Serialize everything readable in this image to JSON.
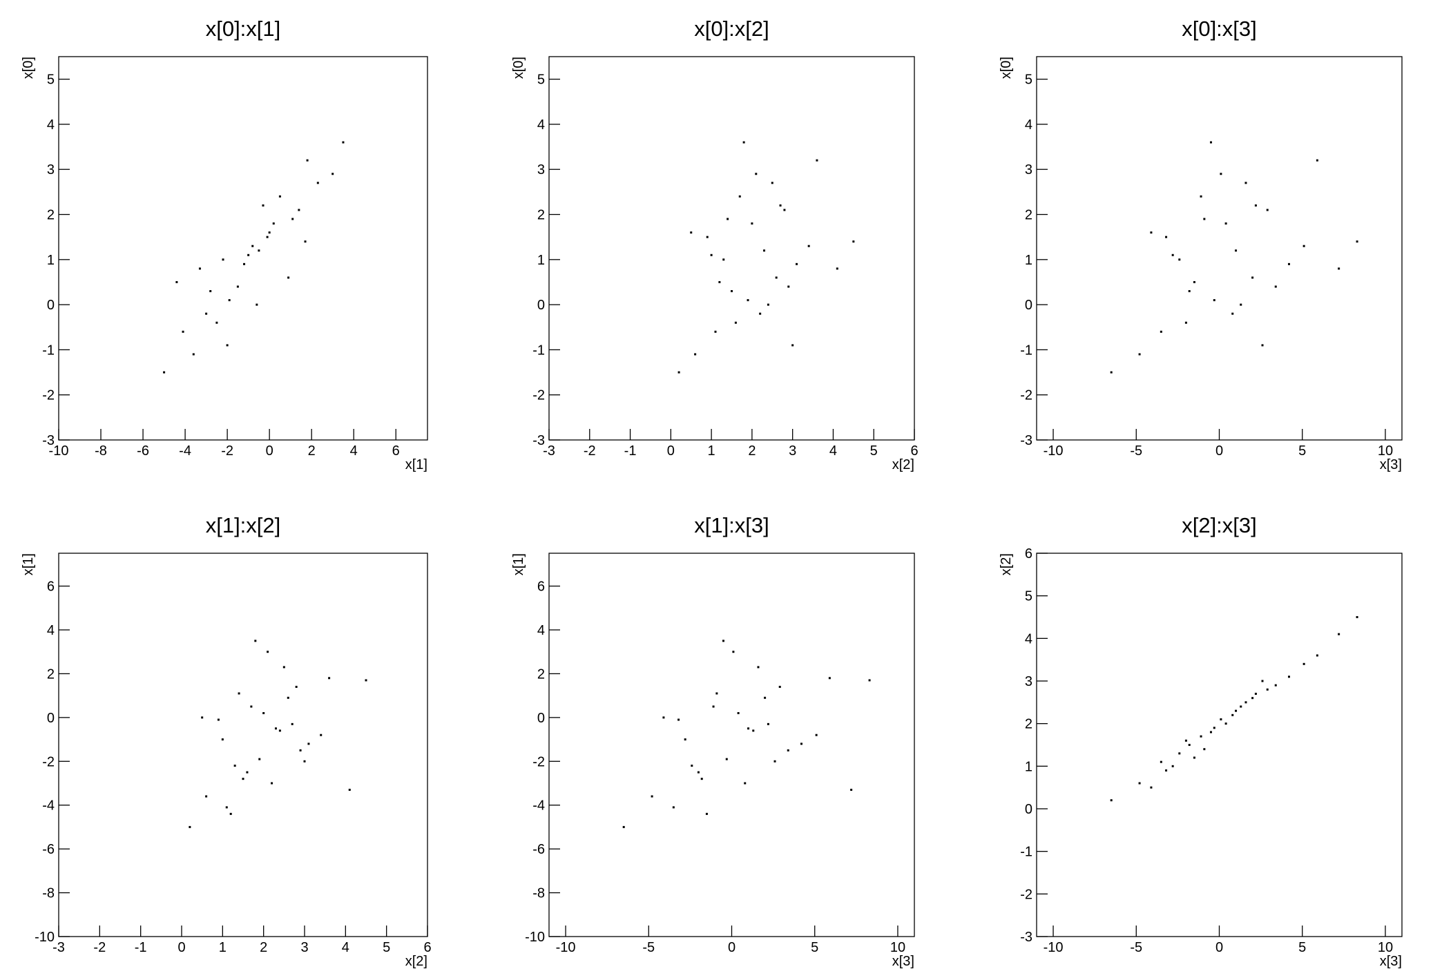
{
  "chart_data": [
    {
      "type": "scatter",
      "title": "x[0]:x[1]",
      "x_label": "x[1]",
      "y_label": "x[0]",
      "color": "#000000",
      "x": [
        -0.5,
        -2.8,
        1.4,
        -4.1,
        0.2,
        -1.2,
        -3.6,
        2.3,
        -1.9,
        -0.1,
        1.8,
        -3.0,
        -2.2,
        0.9,
        0.5,
        -5.0,
        -0.8,
        -1.5,
        1.1,
        -2.5,
        3.0,
        -3.3,
        0.0,
        -0.6,
        3.5,
        -2.0,
        -1.0,
        -0.3,
        -4.4,
        1.7
      ],
      "y": [
        1.2,
        0.3,
        2.1,
        -0.6,
        1.8,
        0.9,
        -1.1,
        2.7,
        0.1,
        1.5,
        3.2,
        -0.2,
        1.0,
        0.6,
        2.4,
        -1.5,
        1.3,
        0.4,
        1.9,
        -0.4,
        2.9,
        0.8,
        1.6,
        0.0,
        3.6,
        -0.9,
        1.1,
        2.2,
        0.5,
        1.4
      ],
      "xlim": [
        -10,
        7.5
      ],
      "ylim": [
        -3,
        5.5
      ],
      "xticks": [
        -10,
        -8,
        -6,
        -4,
        -2,
        0,
        2,
        4,
        6
      ],
      "yticks": [
        -3,
        -2,
        -1,
        0,
        1,
        2,
        3,
        4,
        5
      ]
    },
    {
      "type": "scatter",
      "title": "x[0]:x[2]",
      "x_label": "x[2]",
      "y_label": "x[0]",
      "color": "#000000",
      "x": [
        2.3,
        1.5,
        2.8,
        1.1,
        2.0,
        3.1,
        0.6,
        2.5,
        1.9,
        0.9,
        3.6,
        2.2,
        1.3,
        2.6,
        1.7,
        0.2,
        3.4,
        2.9,
        1.4,
        1.6,
        2.1,
        4.1,
        0.5,
        2.4,
        1.8,
        3.0,
        1.0,
        2.7,
        1.2,
        4.5
      ],
      "y": [
        1.2,
        0.3,
        2.1,
        -0.6,
        1.8,
        0.9,
        -1.1,
        2.7,
        0.1,
        1.5,
        3.2,
        -0.2,
        1.0,
        0.6,
        2.4,
        -1.5,
        1.3,
        0.4,
        1.9,
        -0.4,
        2.9,
        0.8,
        1.6,
        0.0,
        3.6,
        -0.9,
        1.1,
        2.2,
        0.5,
        1.4
      ],
      "xlim": [
        -3,
        6
      ],
      "ylim": [
        -3,
        5.5
      ],
      "xticks": [
        -3,
        -2,
        -1,
        0,
        1,
        2,
        3,
        4,
        5,
        6
      ],
      "yticks": [
        -3,
        -2,
        -1,
        0,
        1,
        2,
        3,
        4,
        5
      ]
    },
    {
      "type": "scatter",
      "title": "x[0]:x[3]",
      "x_label": "x[3]",
      "y_label": "x[0]",
      "color": "#000000",
      "x": [
        1.0,
        -1.8,
        2.9,
        -3.5,
        0.4,
        4.2,
        -4.8,
        1.6,
        -0.3,
        -3.2,
        5.9,
        0.8,
        -2.4,
        2.0,
        -1.1,
        -6.5,
        5.1,
        3.4,
        -0.9,
        -2.0,
        0.1,
        7.2,
        -4.1,
        1.3,
        -0.5,
        2.6,
        -2.8,
        2.2,
        -1.5,
        8.3
      ],
      "y": [
        1.2,
        0.3,
        2.1,
        -0.6,
        1.8,
        0.9,
        -1.1,
        2.7,
        0.1,
        1.5,
        3.2,
        -0.2,
        1.0,
        0.6,
        2.4,
        -1.5,
        1.3,
        0.4,
        1.9,
        -0.4,
        2.9,
        0.8,
        1.6,
        0.0,
        3.6,
        -0.9,
        1.1,
        2.2,
        0.5,
        1.4
      ],
      "xlim": [
        -11,
        11
      ],
      "ylim": [
        -3,
        5.5
      ],
      "xticks": [
        -10,
        -5,
        0,
        5,
        10
      ],
      "yticks": [
        -3,
        -2,
        -1,
        0,
        1,
        2,
        3,
        4,
        5
      ]
    },
    {
      "type": "scatter",
      "title": "x[1]:x[2]",
      "x_label": "x[2]",
      "y_label": "x[1]",
      "color": "#000000",
      "x": [
        2.3,
        1.5,
        2.8,
        1.1,
        2.0,
        3.1,
        0.6,
        2.5,
        1.9,
        0.9,
        3.6,
        2.2,
        1.3,
        2.6,
        1.7,
        0.2,
        3.4,
        2.9,
        1.4,
        1.6,
        2.1,
        4.1,
        0.5,
        2.4,
        1.8,
        3.0,
        1.0,
        2.7,
        1.2,
        4.5
      ],
      "y": [
        -0.5,
        -2.8,
        1.4,
        -4.1,
        0.2,
        -1.2,
        -3.6,
        2.3,
        -1.9,
        -0.1,
        1.8,
        -3.0,
        -2.2,
        0.9,
        0.5,
        -5.0,
        -0.8,
        -1.5,
        1.1,
        -2.5,
        3.0,
        -3.3,
        0.0,
        -0.6,
        3.5,
        -2.0,
        -1.0,
        -0.3,
        -4.4,
        1.7
      ],
      "xlim": [
        -3,
        6
      ],
      "ylim": [
        -10,
        7.5
      ],
      "xticks": [
        -3,
        -2,
        -1,
        0,
        1,
        2,
        3,
        4,
        5,
        6
      ],
      "yticks": [
        -10,
        -8,
        -6,
        -4,
        -2,
        0,
        2,
        4,
        6
      ]
    },
    {
      "type": "scatter",
      "title": "x[1]:x[3]",
      "x_label": "x[3]",
      "y_label": "x[1]",
      "color": "#000000",
      "x": [
        1.0,
        -1.8,
        2.9,
        -3.5,
        0.4,
        4.2,
        -4.8,
        1.6,
        -0.3,
        -3.2,
        5.9,
        0.8,
        -2.4,
        2.0,
        -1.1,
        -6.5,
        5.1,
        3.4,
        -0.9,
        -2.0,
        0.1,
        7.2,
        -4.1,
        1.3,
        -0.5,
        2.6,
        -2.8,
        2.2,
        -1.5,
        8.3
      ],
      "y": [
        -0.5,
        -2.8,
        1.4,
        -4.1,
        0.2,
        -1.2,
        -3.6,
        2.3,
        -1.9,
        -0.1,
        1.8,
        -3.0,
        -2.2,
        0.9,
        0.5,
        -5.0,
        -0.8,
        -1.5,
        1.1,
        -2.5,
        3.0,
        -3.3,
        0.0,
        -0.6,
        3.5,
        -2.0,
        -1.0,
        -0.3,
        -4.4,
        1.7
      ],
      "xlim": [
        -11,
        11
      ],
      "ylim": [
        -10,
        7.5
      ],
      "xticks": [
        -10,
        -5,
        0,
        5,
        10
      ],
      "yticks": [
        -10,
        -8,
        -6,
        -4,
        -2,
        0,
        2,
        4,
        6
      ]
    },
    {
      "type": "scatter",
      "title": "x[2]:x[3]",
      "x_label": "x[3]",
      "y_label": "x[2]",
      "color": "#000000",
      "x": [
        1.0,
        -1.8,
        2.9,
        -3.5,
        0.4,
        4.2,
        -4.8,
        1.6,
        -0.3,
        -3.2,
        5.9,
        0.8,
        -2.4,
        2.0,
        -1.1,
        -6.5,
        5.1,
        3.4,
        -0.9,
        -2.0,
        0.1,
        7.2,
        -4.1,
        1.3,
        -0.5,
        2.6,
        -2.8,
        2.2,
        -1.5,
        8.3
      ],
      "y": [
        2.3,
        1.5,
        2.8,
        1.1,
        2.0,
        3.1,
        0.6,
        2.5,
        1.9,
        0.9,
        3.6,
        2.2,
        1.3,
        2.6,
        1.7,
        0.2,
        3.4,
        2.9,
        1.4,
        1.6,
        2.1,
        4.1,
        0.5,
        2.4,
        1.8,
        3.0,
        1.0,
        2.7,
        1.2,
        4.5
      ],
      "xlim": [
        -11,
        11
      ],
      "ylim": [
        -3,
        6
      ],
      "xticks": [
        -10,
        -5,
        0,
        5,
        10
      ],
      "yticks": [
        -3,
        -2,
        -1,
        0,
        1,
        2,
        3,
        4,
        5,
        6
      ]
    }
  ]
}
